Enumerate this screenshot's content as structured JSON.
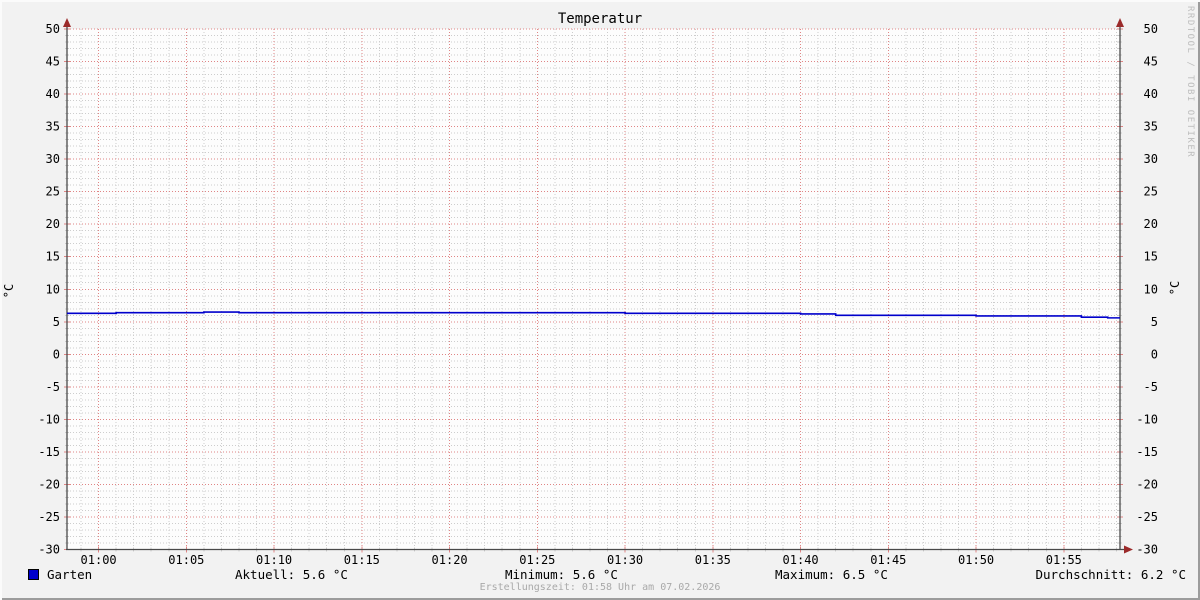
{
  "title": "Temperatur",
  "watermark": "RRDTOOL / TOBI OETIKER",
  "footer": "Erstellungszeit: 01:58 Uhr am 07.02.2026",
  "legend": {
    "series_label": "Garten",
    "stats": [
      "Aktuell: 5.6 °C",
      "Minimum: 5.6 °C",
      "Maximum: 6.5 °C",
      "Durchschnitt: 6.2 °C"
    ]
  },
  "chart_data": {
    "type": "line",
    "title": "Temperatur",
    "ylabel_left": "°C",
    "ylabel_right": "°C",
    "ylim": [
      -30,
      50
    ],
    "y_major_ticks": [
      -30,
      -25,
      -20,
      -15,
      -10,
      -5,
      0,
      5,
      10,
      15,
      20,
      25,
      30,
      35,
      40,
      45,
      50
    ],
    "y_minor_step": 1,
    "xlim_minutes": [
      58.2,
      118.2
    ],
    "x_minor_step_minutes": 1,
    "x_major_ticks": [
      {
        "minute": 60,
        "label": "01:00"
      },
      {
        "minute": 65,
        "label": "01:05"
      },
      {
        "minute": 70,
        "label": "01:10"
      },
      {
        "minute": 75,
        "label": "01:15"
      },
      {
        "minute": 80,
        "label": "01:20"
      },
      {
        "minute": 85,
        "label": "01:25"
      },
      {
        "minute": 90,
        "label": "01:30"
      },
      {
        "minute": 95,
        "label": "01:35"
      },
      {
        "minute": 100,
        "label": "01:40"
      },
      {
        "minute": 105,
        "label": "01:45"
      },
      {
        "minute": 110,
        "label": "01:50"
      },
      {
        "minute": 115,
        "label": "01:55"
      }
    ],
    "grid": {
      "major": "on",
      "minor": "on",
      "style": "dotted"
    },
    "legend_position": "bottom",
    "colors": {
      "background": "#f2f2f2",
      "canvas": "#fdfdfd",
      "grid_major": "#e08585",
      "grid_minor": "#cdcdcd",
      "axis": "#4a4a4a",
      "arrow": "#9b2a2a",
      "text": "#000000"
    },
    "series": [
      {
        "name": "Garten",
        "color": "#0000cc",
        "unit": "°C",
        "stats": {
          "aktuell": 5.6,
          "minimum": 5.6,
          "maximum": 6.5,
          "durchschnitt": 6.2
        },
        "step_points": [
          [
            58.2,
            6.3
          ],
          [
            61,
            6.4
          ],
          [
            66,
            6.5
          ],
          [
            68,
            6.4
          ],
          [
            90,
            6.3
          ],
          [
            100,
            6.2
          ],
          [
            102,
            6.0
          ],
          [
            110,
            5.9
          ],
          [
            116,
            5.7
          ],
          [
            117.5,
            5.6
          ],
          [
            118.2,
            5.6
          ]
        ]
      }
    ]
  }
}
